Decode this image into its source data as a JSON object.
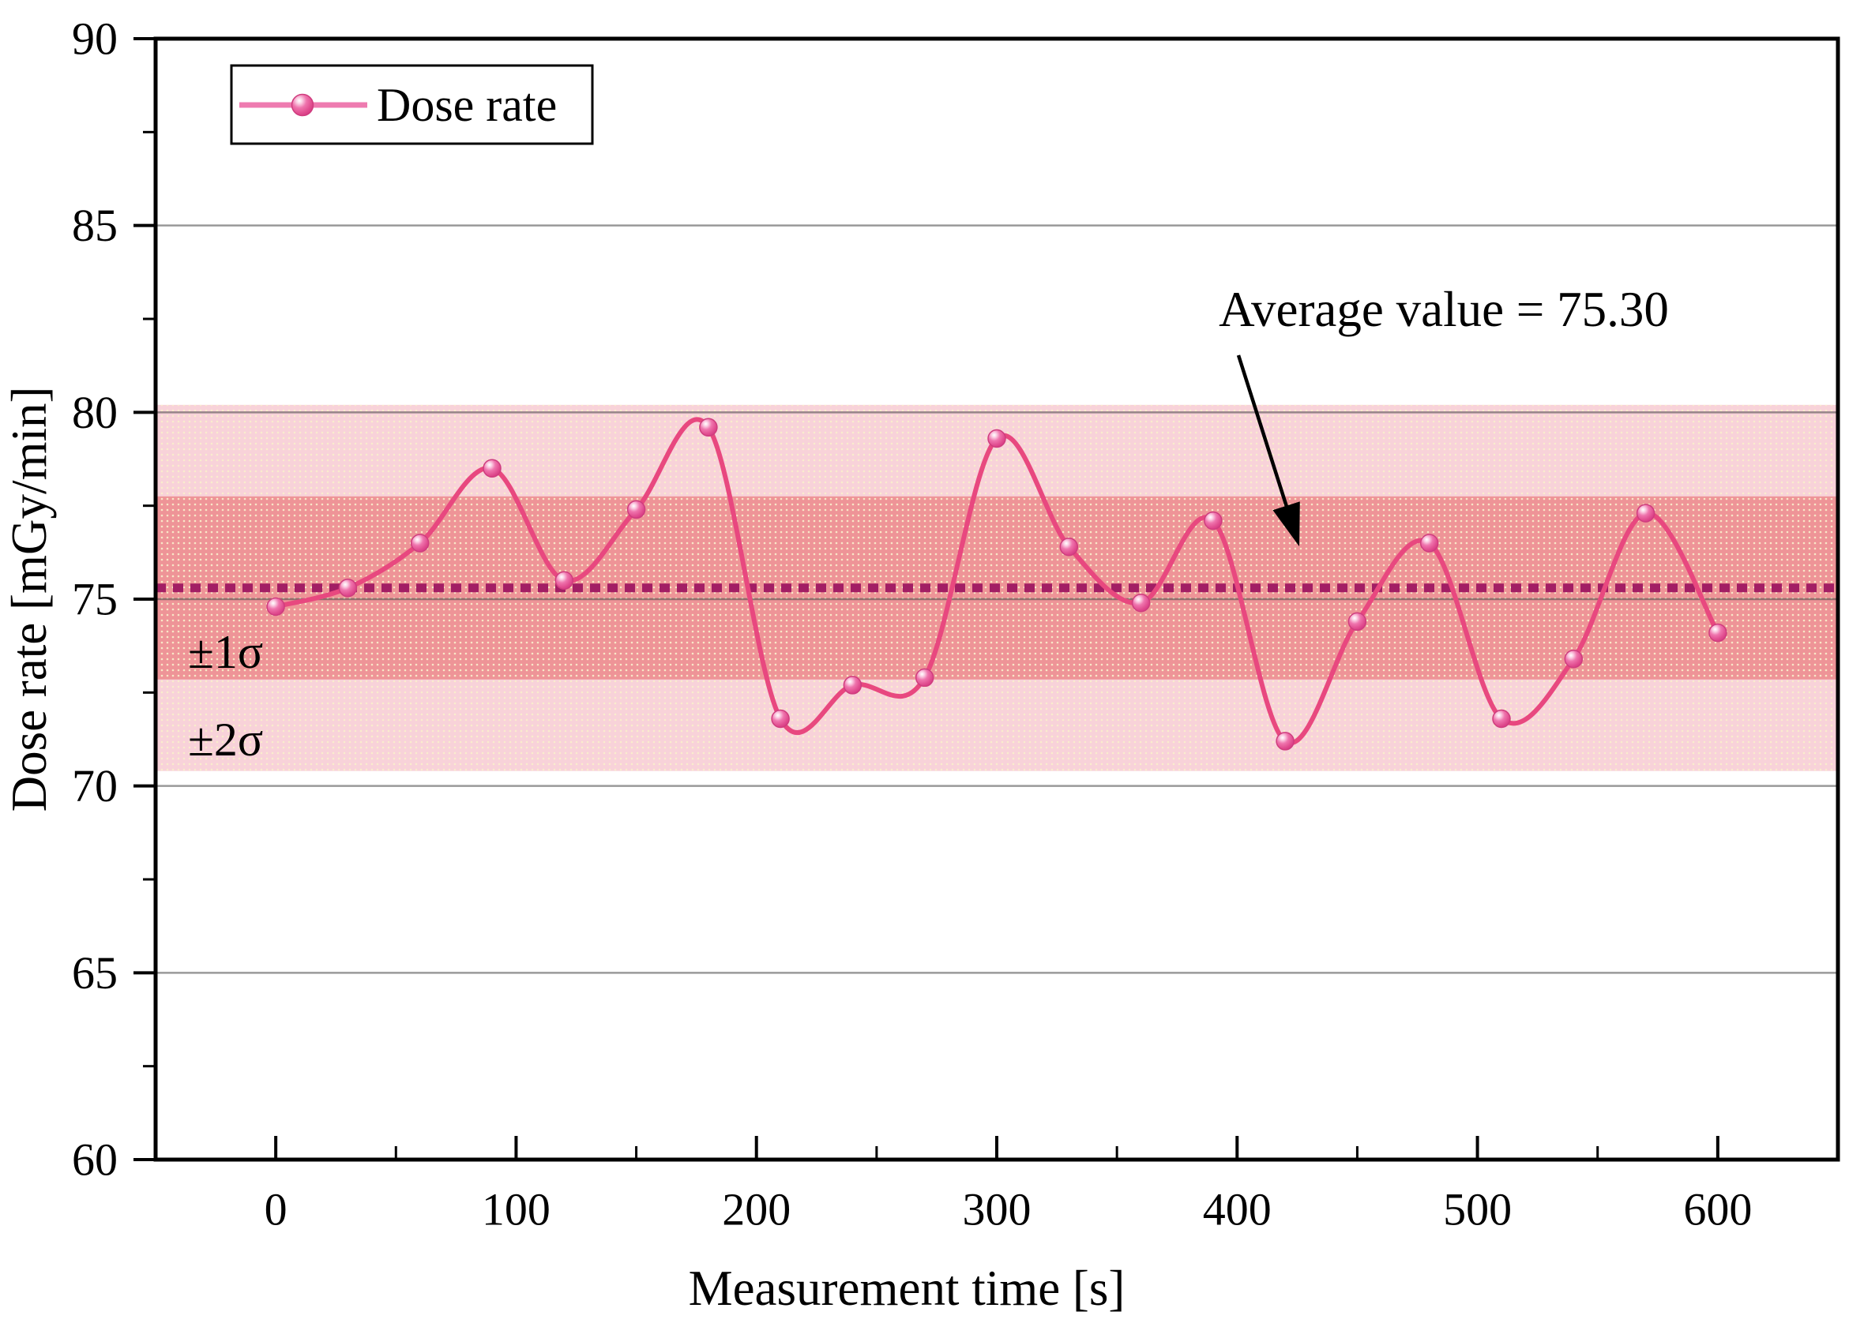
{
  "chart_data": {
    "type": "line",
    "title": "",
    "xlabel": "Measurement time [s]",
    "ylabel": "Dose rate [mGy/min]",
    "xlim": [
      -50,
      650
    ],
    "ylim": [
      60,
      90
    ],
    "x_ticks": [
      0,
      100,
      200,
      300,
      400,
      500,
      600
    ],
    "x_minor_ticks": [
      50,
      150,
      250,
      350,
      450,
      550
    ],
    "y_ticks": [
      60,
      65,
      70,
      75,
      80,
      85,
      90
    ],
    "y_minor_ticks": [
      62.5,
      67.5,
      72.5,
      77.5,
      82.5,
      87.5
    ],
    "grid": "horizontal-major-only",
    "legend_position": "top-left",
    "series": [
      {
        "name": "Dose rate",
        "x": [
          0,
          30,
          60,
          90,
          120,
          150,
          180,
          210,
          240,
          270,
          300,
          330,
          360,
          390,
          420,
          450,
          480,
          510,
          540,
          570,
          600
        ],
        "values": [
          74.8,
          75.3,
          76.5,
          78.5,
          75.5,
          77.4,
          79.6,
          71.8,
          72.7,
          72.9,
          79.3,
          76.4,
          74.9,
          77.1,
          71.2,
          74.4,
          76.5,
          71.8,
          73.4,
          77.3,
          74.1
        ]
      }
    ],
    "average": {
      "value": 75.3,
      "label": "Average value = 75.30"
    },
    "bands": [
      {
        "label": "±2σ",
        "low": 70.4,
        "high": 80.2
      },
      {
        "label": "±1σ",
        "low": 72.85,
        "high": 77.75
      }
    ]
  },
  "legend": {
    "entries": [
      {
        "label": "Dose rate"
      }
    ]
  },
  "annotations": {
    "average_label": "Average value = 75.30",
    "sigma1_label": "±1σ",
    "sigma2_label": "±2σ"
  },
  "colors": {
    "series_line": "#e8487f",
    "marker_edge": "#cf3d7e",
    "marker_mid": "#ef74ad",
    "marker_deep": "#d63984",
    "average_line": "#a21e64",
    "band_1sigma": "#ee9497",
    "band_2sigma": "#f8d2d9",
    "band_dots": "#faf0cc",
    "gridline": "rgba(70,70,70,0.55)",
    "axis": "#000000",
    "legend_line": "#ee7bb0"
  }
}
